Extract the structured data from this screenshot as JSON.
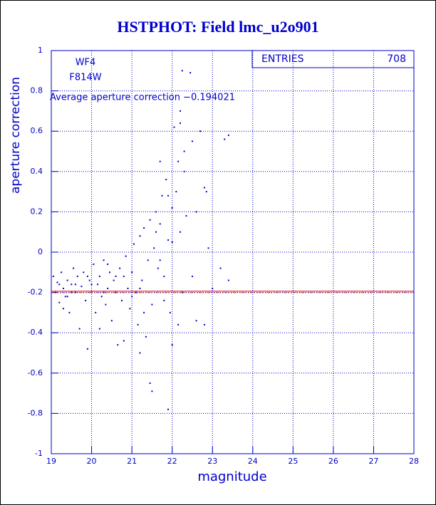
{
  "chart_data": {
    "type": "scatter",
    "title": "HSTPHOT: Field lmc_u2o901",
    "x_label": "magnitude",
    "y_label": "aperture correction",
    "labels": [
      "WF4",
      "F814W"
    ],
    "average": {
      "label": "Average aperture correction −0.194021",
      "value": -0.194021,
      "color": "#cc0000"
    },
    "entries_label": "ENTRIES",
    "entries": 708,
    "color": "#0000cc",
    "grid": true,
    "xlim": [
      19,
      28
    ],
    "ylim": [
      -1,
      1
    ],
    "xticks": [
      19,
      20,
      21,
      22,
      23,
      24,
      25,
      26,
      27,
      28
    ],
    "yticks": [
      -1,
      -0.8,
      -0.6,
      -0.4,
      -0.2,
      0,
      0.2,
      0.4,
      0.6,
      0.8,
      1
    ],
    "x": [
      19.05,
      19.1,
      19.15,
      19.2,
      19.25,
      19.3,
      19.35,
      19.4,
      19.45,
      19.5,
      19.55,
      19.6,
      19.65,
      19.7,
      19.75,
      19.8,
      19.85,
      19.9,
      19.95,
      20.0,
      20.05,
      20.1,
      20.15,
      20.2,
      20.25,
      20.3,
      20.35,
      20.4,
      20.45,
      20.5,
      20.55,
      20.6,
      20.65,
      20.7,
      20.75,
      20.8,
      20.85,
      20.9,
      20.95,
      21.0,
      21.05,
      21.1,
      21.15,
      21.2,
      21.25,
      21.3,
      21.35,
      21.4,
      21.45,
      21.5,
      21.55,
      21.6,
      21.65,
      21.7,
      21.75,
      21.8,
      21.85,
      21.9,
      21.95,
      22.0,
      22.05,
      22.1,
      22.15,
      22.2,
      22.25,
      22.3,
      22.35,
      22.45,
      22.5,
      22.6,
      22.7,
      22.8,
      22.9,
      23.0,
      23.2,
      23.3,
      23.4,
      23.4,
      21.45,
      21.5,
      21.9,
      22.0,
      22.15,
      22.25,
      22.6,
      22.8,
      19.3,
      19.6,
      20.2,
      20.8,
      21.2,
      21.8,
      21.3,
      21.7,
      21.0,
      20.4,
      19.9,
      19.5,
      22.2,
      21.7,
      22.0,
      21.2,
      20.6,
      20.0,
      19.2,
      21.6,
      21.9,
      22.5,
      22.3,
      22.2,
      22.85,
      19.4,
      20.3
    ],
    "values": [
      -0.12,
      -0.2,
      -0.15,
      -0.25,
      -0.1,
      -0.18,
      -0.22,
      -0.14,
      -0.3,
      -0.16,
      -0.08,
      -0.2,
      -0.12,
      -0.38,
      -0.17,
      -0.1,
      -0.24,
      -0.48,
      -0.14,
      -0.2,
      -0.06,
      -0.3,
      -0.16,
      -0.12,
      -0.22,
      -0.04,
      -0.26,
      -0.18,
      -0.1,
      -0.34,
      -0.14,
      -0.2,
      -0.46,
      -0.08,
      -0.24,
      -0.12,
      -0.02,
      -0.18,
      -0.28,
      -0.1,
      0.04,
      -0.2,
      -0.36,
      0.08,
      -0.14,
      0.12,
      -0.42,
      -0.04,
      0.16,
      -0.26,
      0.02,
      0.2,
      -0.08,
      0.14,
      0.28,
      -0.12,
      0.36,
      0.06,
      -0.3,
      0.22,
      0.62,
      0.3,
      0.45,
      0.1,
      0.9,
      0.4,
      0.18,
      0.89,
      0.55,
      0.2,
      0.6,
      0.32,
      0.02,
      -0.18,
      -0.08,
      0.56,
      0.58,
      -0.14,
      -0.65,
      -0.69,
      -0.78,
      -0.46,
      -0.36,
      -0.2,
      -0.34,
      -0.36,
      -0.28,
      -0.16,
      -0.38,
      -0.44,
      -0.5,
      -0.24,
      -0.3,
      -0.04,
      -0.22,
      -0.06,
      -0.12,
      -0.2,
      0.7,
      0.45,
      0.05,
      -0.18,
      -0.12,
      -0.16,
      -0.16,
      0.1,
      0.28,
      -0.12,
      0.5,
      0.64,
      0.3,
      -0.22,
      -0.2
    ]
  }
}
